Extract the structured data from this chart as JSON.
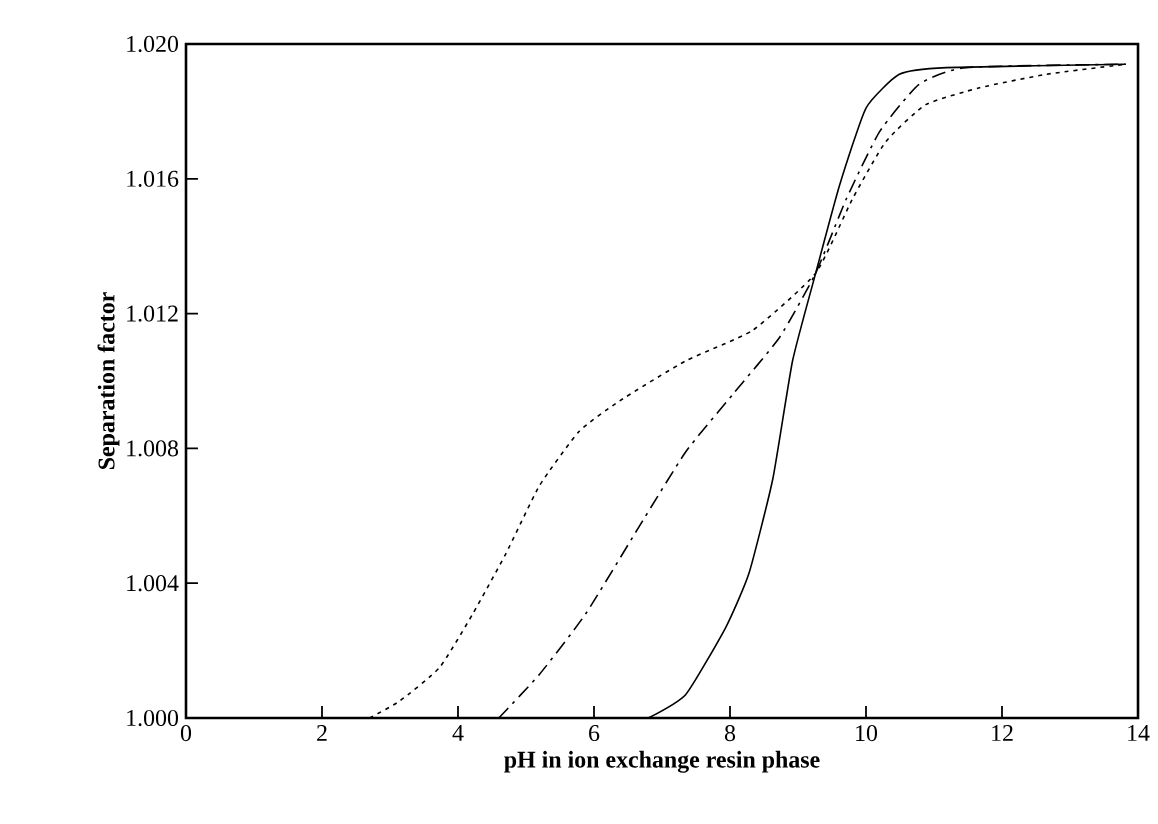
{
  "chart_data": {
    "type": "line",
    "xlabel": "pH in ion exchange resin phase",
    "ylabel": "Separation factor",
    "xlim": [
      0,
      14
    ],
    "xticks": [
      0,
      2,
      4,
      6,
      8,
      10,
      12,
      14
    ],
    "ylim": [
      1.0,
      1.02
    ],
    "yticks": [
      {
        "value": 1.0,
        "label": "1.000"
      },
      {
        "value": 1.004,
        "label": "1.004"
      },
      {
        "value": 1.008,
        "label": "1.008"
      },
      {
        "value": 1.012,
        "label": "1.012"
      },
      {
        "value": 1.016,
        "label": "1.016"
      },
      {
        "value": 1.02,
        "label": "1.020"
      }
    ],
    "grid": false,
    "series": [
      {
        "color": "#000000",
        "line_style": "solid",
        "x": [
          6.8,
          7.35,
          7.94,
          8.28,
          8.63,
          8.92,
          9.26,
          9.61,
          10.0,
          10.49,
          11.18,
          13.82
        ],
        "values": [
          1.0,
          1.0007,
          1.0027,
          1.0043,
          1.0071,
          1.0106,
          1.0132,
          1.0158,
          1.0181,
          1.0191,
          1.0193,
          1.0194
        ]
      },
      {
        "color": "#000000",
        "line_style": "dashed",
        "x": [
          4.6,
          5.2,
          5.88,
          6.67,
          7.35,
          8.04,
          8.73,
          9.26,
          9.71,
          10.2,
          10.78,
          11.47,
          13.82
        ],
        "values": [
          1.0,
          1.0013,
          1.0031,
          1.0057,
          1.0079,
          1.0096,
          1.0113,
          1.0132,
          1.0154,
          1.0174,
          1.0188,
          1.0193,
          1.0194
        ]
      },
      {
        "color": "#000000",
        "line_style": "dotted",
        "x": [
          2.7,
          3.14,
          3.73,
          4.22,
          4.71,
          5.2,
          5.78,
          6.37,
          7.35,
          8.33,
          9.26,
          9.8,
          10.29,
          10.88,
          11.67,
          12.65,
          13.82
        ],
        "values": [
          1.0,
          1.0005,
          1.0015,
          1.0031,
          1.0049,
          1.0069,
          1.0085,
          1.0094,
          1.0106,
          1.0115,
          1.0132,
          1.0154,
          1.0171,
          1.0182,
          1.0187,
          1.0191,
          1.0194
        ]
      }
    ]
  }
}
